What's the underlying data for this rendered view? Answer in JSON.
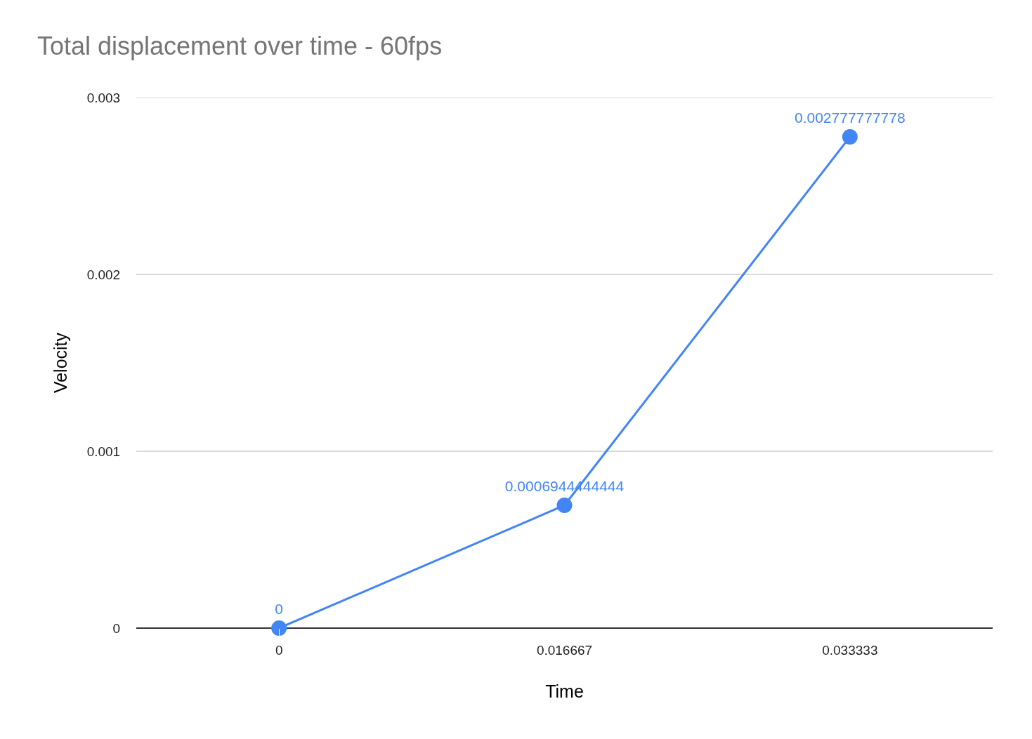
{
  "chart_data": {
    "type": "line",
    "title": "Total displacement over time - 60fps",
    "xlabel": "Time",
    "ylabel": "Velocity",
    "categories": [
      "0",
      "0.016667",
      "0.033333"
    ],
    "series": [
      {
        "color": "#4285f4",
        "values": [
          0,
          0.0006944444444,
          0.002777777778
        ],
        "value_labels": [
          "0",
          "0.0006944444444",
          "0.002777777778"
        ]
      }
    ],
    "ylim": [
      0,
      0.003
    ],
    "yticks": [
      0,
      0.001,
      0.002,
      0.003
    ],
    "grid": "y",
    "marker": "circle",
    "line_style": "solid"
  }
}
